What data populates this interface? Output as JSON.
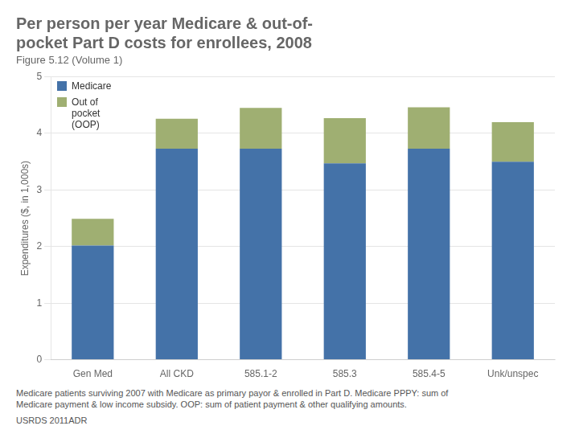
{
  "chart_data": {
    "type": "bar",
    "title": "Per person per year Medicare & out-of-\npocket Part D costs for enrollees, 2008",
    "subtitle": "Figure 5.12 (Volume 1)",
    "categories": [
      "Gen Med",
      "All CKD",
      "585.1-2",
      "585.3",
      "585.4-5",
      "Unk/unspec"
    ],
    "series": [
      {
        "name": "Medicare",
        "color": "#4472A8",
        "values": [
          2.02,
          3.73,
          3.73,
          3.47,
          3.73,
          3.5
        ]
      },
      {
        "name": "Out of\npocket\n(OOP)",
        "color": "#9FAF72",
        "values": [
          0.47,
          0.53,
          0.72,
          0.8,
          0.73,
          0.7
        ]
      }
    ],
    "stacked": true,
    "y_label": "Expenditures ($, in 1,000s)",
    "ylim": [
      0,
      5
    ],
    "yticks": [
      0,
      1,
      2,
      3,
      4,
      5
    ],
    "grid": true,
    "legend": "upper left",
    "annotations": [
      "Medicare patients surviving 2007 with Medicare as primary payor & enrolled in Part D. Medicare PPPY: sum of\nMedicare payment & low income subsidy. OOP: sum of patient payment & other qualifying amounts.",
      "USRDS 2011ADR"
    ]
  }
}
